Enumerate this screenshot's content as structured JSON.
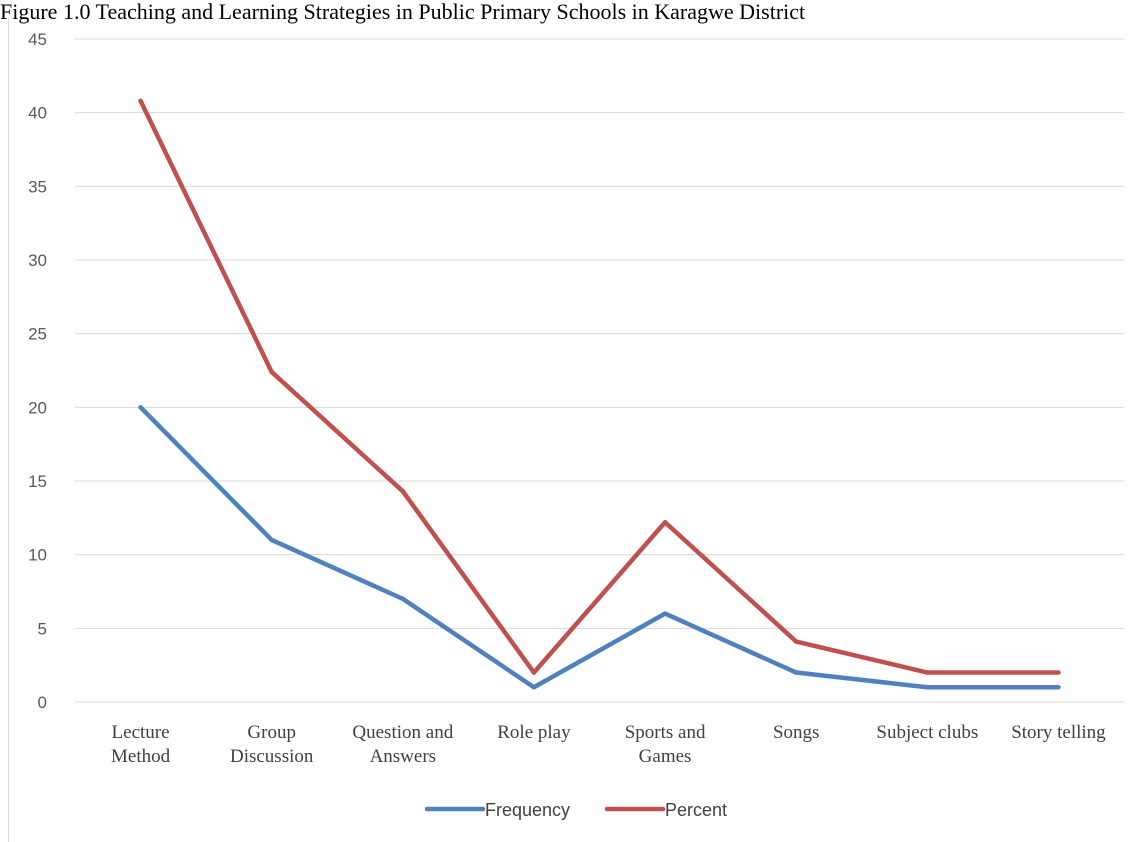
{
  "caption": "Figure 1.0 Teaching and Learning Strategies in Public Primary Schools in Karagwe District",
  "chart_data": {
    "type": "line",
    "categories": [
      [
        "Lecture",
        "Method"
      ],
      [
        "Group",
        "Discussion"
      ],
      [
        "Question and",
        "Answers"
      ],
      [
        "Role play"
      ],
      [
        "Sports and",
        "Games"
      ],
      [
        "Songs"
      ],
      [
        "Subject clubs"
      ],
      [
        "Story telling"
      ]
    ],
    "ylim": [
      0,
      45
    ],
    "yticks": [
      0,
      5,
      10,
      15,
      20,
      25,
      30,
      35,
      40,
      45
    ],
    "grid": true,
    "legend_position": "bottom",
    "series": [
      {
        "name": "Frequency",
        "color": "#4f81bd",
        "values": [
          20,
          11,
          7,
          1,
          6,
          2,
          1,
          1
        ]
      },
      {
        "name": "Percent",
        "color": "#c0504d",
        "values": [
          40.8,
          22.4,
          14.3,
          2.0,
          12.2,
          4.1,
          2.0,
          2.0
        ]
      }
    ]
  }
}
